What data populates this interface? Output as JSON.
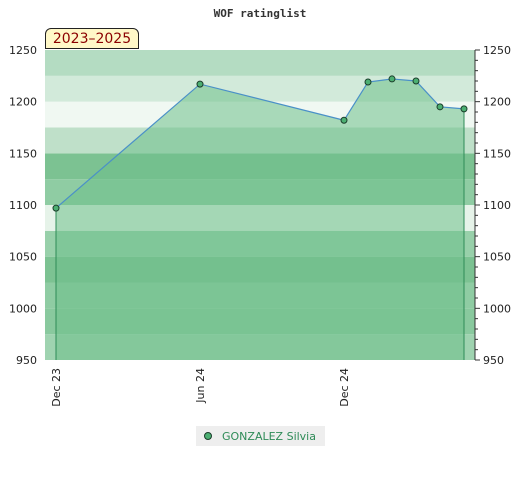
{
  "chart_data": {
    "type": "area",
    "title": "WOF ratinglist",
    "period_label": "2023–2025",
    "x_tick_labels": [
      "Dec 23",
      "Jun 24",
      "Dec 24"
    ],
    "y_ticks": [
      950,
      1000,
      1050,
      1100,
      1150,
      1200,
      1250
    ],
    "ylim": [
      950,
      1250
    ],
    "grid": false,
    "legend_position": "bottom-center",
    "series": [
      {
        "name": "GONZALEZ Silvia",
        "x": [
          "2023-12",
          "2024-06",
          "2024-12",
          "2025-01",
          "2025-02",
          "2025-03",
          "2025-04",
          "2025-05"
        ],
        "values": [
          1097,
          1217,
          1182,
          1219,
          1222,
          1220,
          1195,
          1193
        ]
      }
    ],
    "colors": {
      "line": "#4a90c8",
      "fill": "#6dbf8a",
      "marker": "#4caf72",
      "marker_stroke": "#1a3d2a",
      "drop_line": "#2e8b57"
    }
  }
}
